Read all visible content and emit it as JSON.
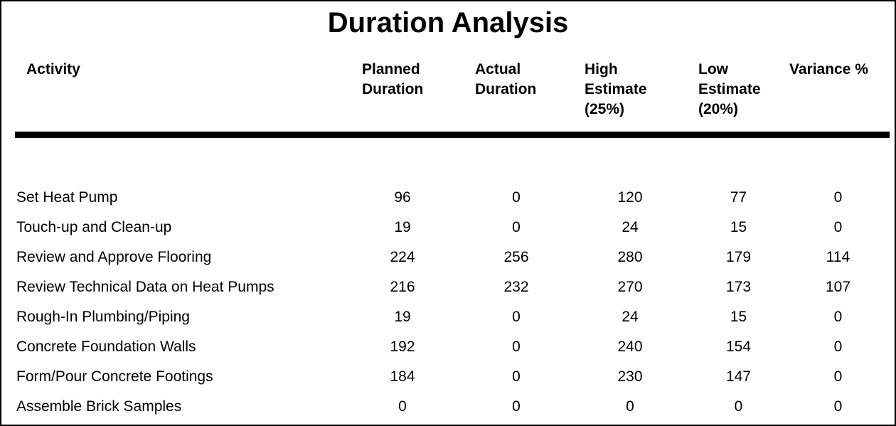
{
  "title": "Duration Analysis",
  "colors": {
    "text": "#000000",
    "background": "#ffffff",
    "rule": "#000000",
    "border": "#000000"
  },
  "table": {
    "columns": [
      {
        "label": "Activity"
      },
      {
        "label": "Planned\nDuration"
      },
      {
        "label": "Actual\nDuration"
      },
      {
        "label": "High\nEstimate\n(25%)"
      },
      {
        "label": "Low\nEstimate\n(20%)"
      },
      {
        "label": "Variance %"
      }
    ],
    "rows": [
      {
        "activity": "Set Heat Pump",
        "planned": "96",
        "actual": "0",
        "high": "120",
        "low": "77",
        "variance": "0"
      },
      {
        "activity": "Touch-up and Clean-up",
        "planned": "19",
        "actual": "0",
        "high": "24",
        "low": "15",
        "variance": "0"
      },
      {
        "activity": "Review and Approve Flooring",
        "planned": "224",
        "actual": "256",
        "high": "280",
        "low": "179",
        "variance": "114"
      },
      {
        "activity": "Review Technical Data on Heat Pumps",
        "planned": "216",
        "actual": "232",
        "high": "270",
        "low": "173",
        "variance": "107"
      },
      {
        "activity": "Rough-In Plumbing/Piping",
        "planned": "19",
        "actual": "0",
        "high": "24",
        "low": "15",
        "variance": "0"
      },
      {
        "activity": "Concrete Foundation Walls",
        "planned": "192",
        "actual": "0",
        "high": "240",
        "low": "154",
        "variance": "0"
      },
      {
        "activity": "Form/Pour Concrete Footings",
        "planned": "184",
        "actual": "0",
        "high": "230",
        "low": "147",
        "variance": "0"
      },
      {
        "activity": "Assemble Brick Samples",
        "planned": "0",
        "actual": "0",
        "high": "0",
        "low": "0",
        "variance": "0"
      }
    ]
  }
}
